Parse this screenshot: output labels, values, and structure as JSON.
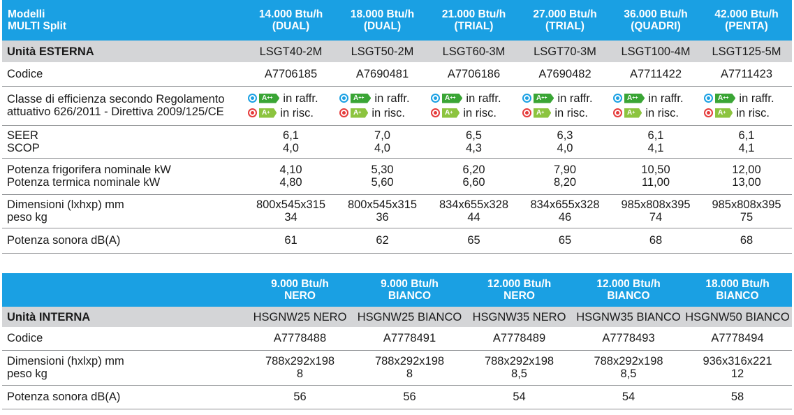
{
  "outdoor": {
    "header_label": [
      "Modelli",
      "MULTI Split"
    ],
    "columns": [
      [
        "14.000 Btu/h",
        "(DUAL)"
      ],
      [
        "18.000 Btu/h",
        "(DUAL)"
      ],
      [
        "21.000 Btu/h",
        "(TRIAL)"
      ],
      [
        "27.000 Btu/h",
        "(TRIAL)"
      ],
      [
        "36.000 Btu/h",
        "(QUADRI)"
      ],
      [
        "42.000 Btu/h",
        "(PENTA)"
      ]
    ],
    "unit_label": "Unità ESTERNA",
    "units": [
      "LSGT40-2M",
      "LSGT50-2M",
      "LSGT60-3M",
      "LSGT70-3M",
      "LSGT100-4M",
      "LSGT125-5M"
    ],
    "codice_label": "Codice",
    "codici": [
      "A7706185",
      "A7690481",
      "A7706186",
      "A7690482",
      "A7711422",
      "A7711423"
    ],
    "efficiency_label": [
      "Classe di efficienza secondo Regolamento",
      "attuativo 626/2011 - Direttiva 2009/125/CE"
    ],
    "efficiency": {
      "cool_class": "A",
      "cool_sup": "++",
      "cool_text": "in raffr.",
      "heat_class": "A",
      "heat_sup": "+",
      "heat_text": "in risc."
    },
    "seer_scop_label": [
      "SEER",
      "SCOP"
    ],
    "seer": [
      "6,1",
      "7,0",
      "6,5",
      "6,3",
      "6,1",
      "6,1"
    ],
    "scop": [
      "4,0",
      "4,0",
      "4,3",
      "4,0",
      "4,1",
      "4,1"
    ],
    "potenza_label": [
      "Potenza frigorifera nominale kW",
      "Potenza termica nominale kW"
    ],
    "potenza_frig": [
      "4,10",
      "5,30",
      "6,20",
      "7,90",
      "10,50",
      "12,00"
    ],
    "potenza_term": [
      "4,80",
      "5,60",
      "6,60",
      "8,20",
      "11,00",
      "13,00"
    ],
    "dim_label": [
      "Dimensioni (lxhxp) mm",
      "peso kg"
    ],
    "dimensioni": [
      "800x545x315",
      "800x545x315",
      "834x655x328",
      "834x655x328",
      "985x808x395",
      "985x808x395"
    ],
    "peso": [
      "34",
      "36",
      "44",
      "46",
      "74",
      "75"
    ],
    "sonora_label": "Potenza sonora dB(A)",
    "sonora": [
      "61",
      "62",
      "65",
      "65",
      "68",
      "68"
    ]
  },
  "indoor": {
    "columns": [
      [
        "9.000 Btu/h",
        "NERO"
      ],
      [
        "9.000 Btu/h",
        "BIANCO"
      ],
      [
        "12.000 Btu/h",
        "NERO"
      ],
      [
        "12.000 Btu/h",
        "BIANCO"
      ],
      [
        "18.000 Btu/h",
        "BIANCO"
      ]
    ],
    "unit_label": "Unità INTERNA",
    "units": [
      "HSGNW25 NERO",
      "HSGNW25 BIANCO",
      "HSGNW35 NERO",
      "HSGNW35 BIANCO",
      "HSGNW50 BIANCO"
    ],
    "codice_label": "Codice",
    "codici": [
      "A7778488",
      "A7778491",
      "A7778489",
      "A7778493",
      "A7778494"
    ],
    "dim_label": [
      "Dimensioni (hxlxp) mm",
      "peso kg"
    ],
    "dimensioni": [
      "788x292x198",
      "788x292x198",
      "788x292x198",
      "788x292x198",
      "936x316x221"
    ],
    "peso": [
      "8",
      "8",
      "8,5",
      "8,5",
      "12"
    ],
    "sonora_label": "Potenza sonora dB(A)",
    "sonora": [
      "56",
      "56",
      "54",
      "54",
      "58"
    ]
  },
  "colors": {
    "header_blue": "#1aa0e3",
    "unit_gray": "#d4d5d7",
    "a_plus_plus": "#3aa535",
    "a_plus": "#8cc43f"
  }
}
